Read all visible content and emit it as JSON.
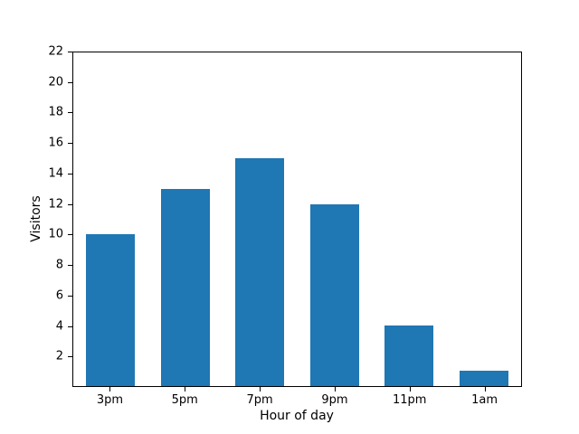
{
  "chart_data": {
    "type": "bar",
    "title": "",
    "xlabel": "Hour of day",
    "ylabel": "Visitors",
    "categories": [
      "3pm",
      "5pm",
      "7pm",
      "9pm",
      "11pm",
      "1am"
    ],
    "values": [
      10,
      13,
      15,
      12,
      4,
      1
    ],
    "ylim": [
      0,
      22
    ],
    "yticks": [
      2,
      4,
      6,
      8,
      10,
      12,
      14,
      16,
      18,
      20,
      22
    ],
    "grid": false,
    "legend": "none",
    "bar_color": "#1f77b4",
    "spine_color": "#000000",
    "background_color": "#ffffff"
  }
}
